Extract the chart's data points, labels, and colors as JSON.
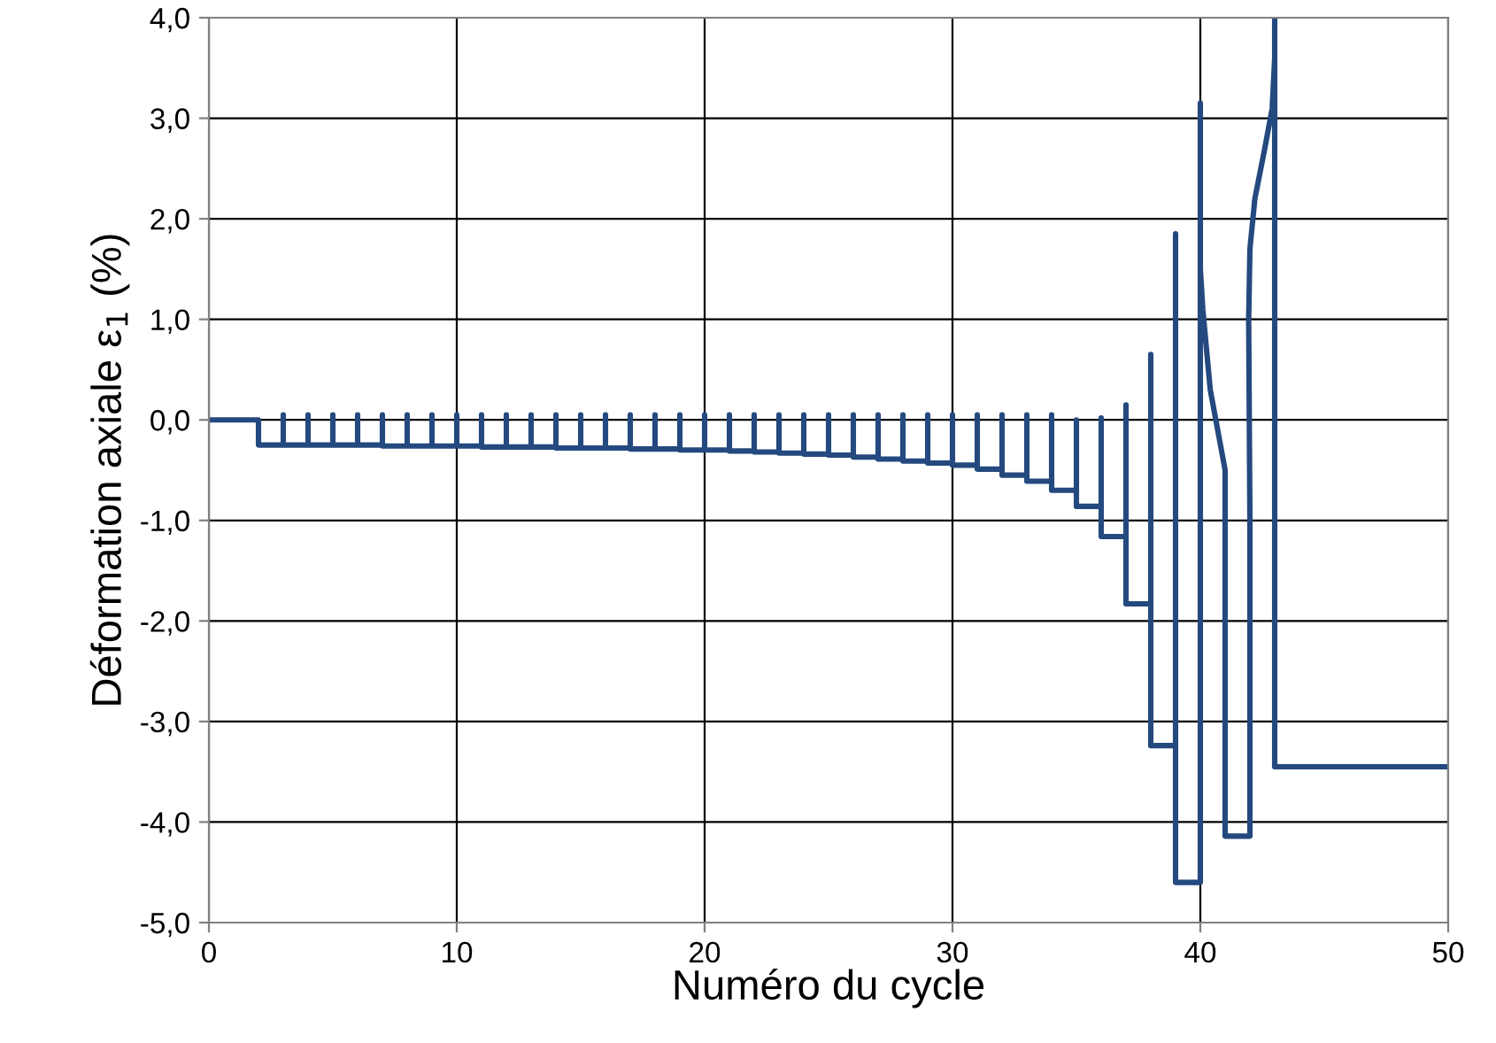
{
  "chart_data": {
    "type": "line",
    "xlabel": "Numéro du cycle",
    "ylabel": "Déformation axiale ε$_{1}$ (%)",
    "xlim": [
      0,
      50
    ],
    "xticks": [
      0,
      10,
      20,
      30,
      40,
      50
    ],
    "ylim": [
      -5,
      4
    ],
    "yticks": [
      {
        "value": -5,
        "label": "-5,0"
      },
      {
        "value": -4,
        "label": "-4,0"
      },
      {
        "value": -3,
        "label": "-3,0"
      },
      {
        "value": -2,
        "label": "-2,0"
      },
      {
        "value": -1,
        "label": "-1,0"
      },
      {
        "value": 0,
        "label": "0,0"
      },
      {
        "value": 1,
        "label": "1,0"
      },
      {
        "value": 2,
        "label": "2,0"
      },
      {
        "value": 3,
        "label": "3,0"
      },
      {
        "value": 4,
        "label": "4,0"
      }
    ],
    "grid": true,
    "legend": false,
    "marker": "none",
    "line_style": "solid",
    "series": [
      {
        "color": "#24497f",
        "x": [
          0,
          2,
          2,
          3,
          3,
          3,
          4,
          4,
          4,
          5,
          5,
          5,
          6,
          6,
          6,
          7,
          7,
          7,
          8,
          8,
          8,
          9,
          9,
          9,
          10,
          10,
          10,
          11,
          11,
          11,
          12,
          12,
          12,
          13,
          13,
          13,
          14,
          14,
          14,
          15,
          15,
          15,
          16,
          16,
          16,
          17,
          17,
          17,
          18,
          18,
          18,
          19,
          19,
          19,
          20,
          20,
          20,
          21,
          21,
          21,
          22,
          22,
          22,
          23,
          23,
          23,
          24,
          24,
          24,
          25,
          25,
          25,
          26,
          26,
          26,
          27,
          27,
          27,
          28,
          28,
          28,
          29,
          29,
          29,
          30,
          30,
          30,
          31,
          31,
          31,
          32,
          32,
          32,
          33,
          33,
          33,
          34,
          34,
          34,
          35,
          35,
          35,
          36,
          36,
          36,
          37,
          37,
          37,
          38,
          38,
          38,
          39,
          39,
          39,
          40,
          40,
          40,
          40.1,
          40.4,
          40.7,
          41.0,
          41.0,
          42.0,
          42.0,
          41.95,
          42.0,
          42.2,
          42.6,
          42.9,
          43.0,
          43.0,
          43.0,
          50
        ],
        "values": [
          0,
          0,
          -0.25,
          -0.25,
          0.05,
          -0.25,
          -0.25,
          0.05,
          -0.25,
          -0.25,
          0.05,
          -0.25,
          -0.25,
          0.05,
          -0.25,
          -0.25,
          0.05,
          -0.26,
          -0.26,
          0.05,
          -0.26,
          -0.26,
          0.05,
          -0.26,
          -0.26,
          0.05,
          -0.26,
          -0.26,
          0.05,
          -0.27,
          -0.27,
          0.05,
          -0.27,
          -0.27,
          0.05,
          -0.27,
          -0.27,
          0.05,
          -0.28,
          -0.28,
          0.05,
          -0.28,
          -0.28,
          0.05,
          -0.28,
          -0.28,
          0.05,
          -0.29,
          -0.29,
          0.05,
          -0.29,
          -0.29,
          0.05,
          -0.3,
          -0.3,
          0.05,
          -0.3,
          -0.3,
          0.05,
          -0.31,
          -0.31,
          0.05,
          -0.32,
          -0.32,
          0.05,
          -0.33,
          -0.33,
          0.05,
          -0.34,
          -0.34,
          0.05,
          -0.35,
          -0.35,
          0.05,
          -0.37,
          -0.37,
          0.05,
          -0.39,
          -0.39,
          0.05,
          -0.41,
          -0.41,
          0.05,
          -0.43,
          -0.43,
          0.05,
          -0.45,
          -0.45,
          0.05,
          -0.49,
          -0.49,
          0.05,
          -0.55,
          -0.55,
          0.05,
          -0.61,
          -0.61,
          0.05,
          -0.7,
          -0.7,
          0.0,
          -0.86,
          -0.86,
          0.02,
          -1.16,
          -1.16,
          0.15,
          -1.83,
          -1.83,
          0.65,
          -3.24,
          -3.24,
          1.85,
          -4.6,
          -4.6,
          3.15,
          1.5,
          1.1,
          0.3,
          -0.1,
          -0.5,
          -4.14,
          -4.14,
          -1.0,
          1.0,
          1.7,
          2.2,
          2.7,
          3.1,
          3.6,
          4.0,
          -3.45,
          -3.45
        ]
      }
    ]
  }
}
